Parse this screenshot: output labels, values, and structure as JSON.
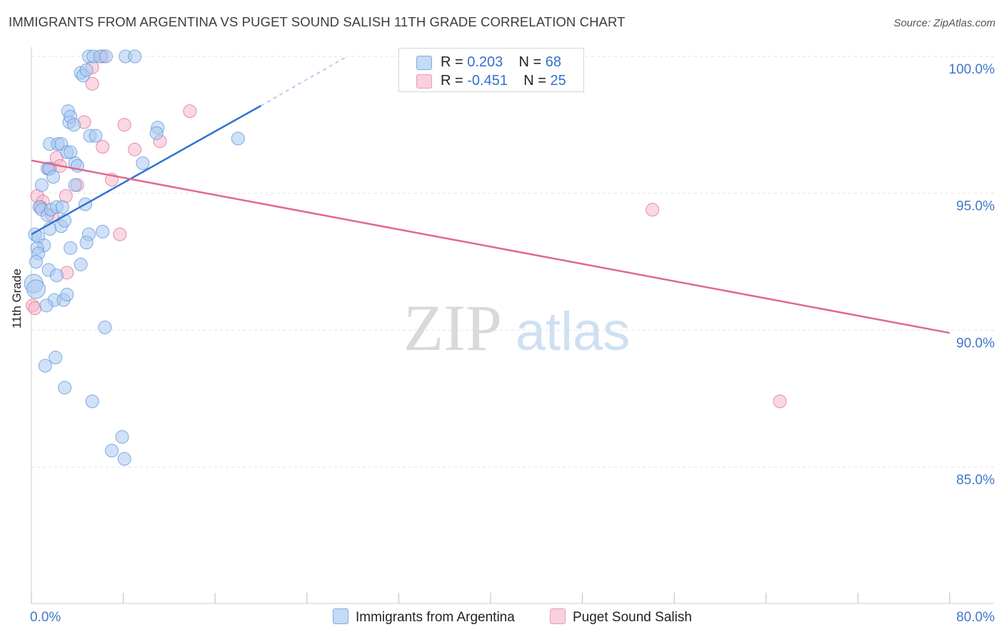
{
  "header": {
    "title": "IMMIGRANTS FROM ARGENTINA VS PUGET SOUND SALISH 11TH GRADE CORRELATION CHART",
    "source": "Source: ZipAtlas.com"
  },
  "watermark": {
    "zip": "ZIP",
    "atlas": "atlas"
  },
  "legend": {
    "rows": [
      {
        "r_label": "R = ",
        "r_value": "0.203",
        "n_label": "N = ",
        "n_value": "68",
        "color": "#a9c8f0"
      },
      {
        "r_label": "R = ",
        "r_value": "-0.451",
        "n_label": "N = ",
        "n_value": "25",
        "color": "#f5b8cb"
      }
    ]
  },
  "bottom_legend": {
    "series_a": "Immigrants from Argentina",
    "series_b": "Puget Sound Salish"
  },
  "chart_data": {
    "type": "scatter",
    "title": "IMMIGRANTS FROM ARGENTINA VS PUGET SOUND SALISH 11TH GRADE CORRELATION CHART",
    "xlabel": "",
    "ylabel": "11th Grade",
    "xlim": [
      0,
      80
    ],
    "ylim": [
      80,
      101
    ],
    "x_tick_labels": [
      "0.0%",
      "80.0%"
    ],
    "y_ticks": [
      85,
      90,
      95,
      100
    ],
    "y_tick_labels": [
      "85.0%",
      "90.0%",
      "95.0%",
      "100.0%"
    ],
    "grid": true,
    "series": [
      {
        "name": "Immigrants from Argentina",
        "color": "#5a94dc",
        "fill": "#a9c8f0",
        "R": 0.203,
        "N": 68,
        "points": [
          [
            5.0,
            100.0
          ],
          [
            5.4,
            100.0
          ],
          [
            6.0,
            100.0
          ],
          [
            6.5,
            100.0
          ],
          [
            8.2,
            100.0
          ],
          [
            9.0,
            100.0
          ],
          [
            4.3,
            99.4
          ],
          [
            4.5,
            99.3
          ],
          [
            4.8,
            99.5
          ],
          [
            3.2,
            98.0
          ],
          [
            3.3,
            97.6
          ],
          [
            3.4,
            97.8
          ],
          [
            3.7,
            97.5
          ],
          [
            5.1,
            97.1
          ],
          [
            5.6,
            97.1
          ],
          [
            11.0,
            97.4
          ],
          [
            10.9,
            97.2
          ],
          [
            18.0,
            97.0
          ],
          [
            1.6,
            96.8
          ],
          [
            2.3,
            96.8
          ],
          [
            2.6,
            96.8
          ],
          [
            3.1,
            96.5
          ],
          [
            3.4,
            96.5
          ],
          [
            1.4,
            95.9
          ],
          [
            1.6,
            95.9
          ],
          [
            1.9,
            95.6
          ],
          [
            3.8,
            96.1
          ],
          [
            4.0,
            96.0
          ],
          [
            9.7,
            96.1
          ],
          [
            0.9,
            95.3
          ],
          [
            3.8,
            95.3
          ],
          [
            0.7,
            94.5
          ],
          [
            0.9,
            94.4
          ],
          [
            1.4,
            94.2
          ],
          [
            1.7,
            94.4
          ],
          [
            2.2,
            94.5
          ],
          [
            2.7,
            94.5
          ],
          [
            4.7,
            94.6
          ],
          [
            1.6,
            93.7
          ],
          [
            2.6,
            93.8
          ],
          [
            2.9,
            94.0
          ],
          [
            0.3,
            93.5
          ],
          [
            0.6,
            93.4
          ],
          [
            5.0,
            93.5
          ],
          [
            6.2,
            93.6
          ],
          [
            4.8,
            93.2
          ],
          [
            1.1,
            93.1
          ],
          [
            0.5,
            93.0
          ],
          [
            3.4,
            93.0
          ],
          [
            0.6,
            92.8
          ],
          [
            0.4,
            92.5
          ],
          [
            4.3,
            92.4
          ],
          [
            1.5,
            92.2
          ],
          [
            2.2,
            92.0
          ],
          [
            0.2,
            91.7
          ],
          [
            0.4,
            91.5
          ],
          [
            2.0,
            91.1
          ],
          [
            2.8,
            91.1
          ],
          [
            3.1,
            91.3
          ],
          [
            1.3,
            90.9
          ],
          [
            6.4,
            90.1
          ],
          [
            2.1,
            89.0
          ],
          [
            1.2,
            88.7
          ],
          [
            2.9,
            87.9
          ],
          [
            5.3,
            87.4
          ],
          [
            7.9,
            86.1
          ],
          [
            7.0,
            85.6
          ],
          [
            8.1,
            85.3
          ]
        ],
        "trend": {
          "x0": 0.0,
          "y0": 93.5,
          "x1": 20.0,
          "y1": 98.2,
          "dash_to_x": 27.5,
          "dash_to_y": 100.0
        }
      },
      {
        "name": "Puget Sound Salish",
        "color": "#e06890",
        "fill": "#f5b8cb",
        "R": -0.451,
        "N": 25,
        "points": [
          [
            6.2,
            100.0
          ],
          [
            5.3,
            99.6
          ],
          [
            5.3,
            99.0
          ],
          [
            13.8,
            98.0
          ],
          [
            4.6,
            97.6
          ],
          [
            8.1,
            97.5
          ],
          [
            11.2,
            96.9
          ],
          [
            9.0,
            96.6
          ],
          [
            6.2,
            96.7
          ],
          [
            2.2,
            96.3
          ],
          [
            2.5,
            96.0
          ],
          [
            1.5,
            95.9
          ],
          [
            7.0,
            95.5
          ],
          [
            4.0,
            95.3
          ],
          [
            0.5,
            94.9
          ],
          [
            3.0,
            94.9
          ],
          [
            1.0,
            94.7
          ],
          [
            1.8,
            94.2
          ],
          [
            7.7,
            93.5
          ],
          [
            3.1,
            92.1
          ],
          [
            0.1,
            90.9
          ],
          [
            0.3,
            90.8
          ],
          [
            54.1,
            94.4
          ],
          [
            65.2,
            87.4
          ],
          [
            0.8,
            94.5
          ]
        ],
        "trend": {
          "x0": 0.0,
          "y0": 96.2,
          "x1": 80.0,
          "y1": 89.9
        }
      }
    ]
  }
}
